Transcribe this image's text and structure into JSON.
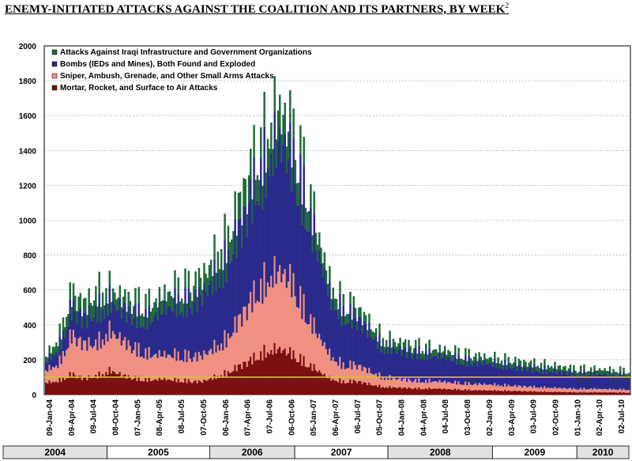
{
  "title": "ENEMY-INITIATED ATTACKS AGAINST THE COALITION AND ITS PARTNERS, BY WEEK",
  "footnote": "2",
  "chart_data": {
    "type": "bar",
    "stacked": true,
    "ylim": [
      0,
      2000
    ],
    "yticks": [
      0,
      200,
      400,
      600,
      800,
      1000,
      1200,
      1400,
      1600,
      1800,
      2000
    ],
    "grid": true,
    "legend_position": "top-left",
    "reference_line": 100,
    "date_range": [
      "09-Jan-04",
      "02-Jul-10"
    ],
    "xtick_labels": [
      "09-Jan-04",
      "09-Apr-04",
      "09-Jul-04",
      "08-Oct-04",
      "07-Jan-05",
      "08-Apr-05",
      "08-Jul-05",
      "07-Oct-05",
      "06-Jan-06",
      "07-Apr-06",
      "07-Jul-06",
      "06-Oct-06",
      "05-Jan-07",
      "06-Apr-07",
      "06-Jul-07",
      "05-Oct-07",
      "04-Jan-08",
      "04-Apr-08",
      "04-Jul-08",
      "03-Oct-08",
      "02-Jan-09",
      "03-Apr-09",
      "03-Jul-09",
      "02-Oct-09",
      "01-Jan-10",
      "02-Apr-10",
      "02-Jul-10"
    ],
    "years": [
      {
        "label": "2004",
        "shaded": true
      },
      {
        "label": "2005",
        "shaded": false
      },
      {
        "label": "2006",
        "shaded": true
      },
      {
        "label": "2007",
        "shaded": false
      },
      {
        "label": "2008",
        "shaded": true
      },
      {
        "label": "2009",
        "shaded": false
      },
      {
        "label": "2010",
        "shaded": true
      }
    ],
    "series": [
      {
        "name": "Mortar, Rocket, and Surface to Air Attacks",
        "color": "#7a1010",
        "values": [
          70,
          80,
          120,
          95,
          110,
          140,
          110,
          95,
          85,
          90,
          85,
          80,
          75,
          100,
          125,
          170,
          210,
          250,
          265,
          240,
          190,
          140,
          90,
          75,
          80,
          60,
          45,
          42,
          38,
          35,
          35,
          32,
          30,
          26,
          25,
          24,
          22,
          20,
          18,
          16,
          15,
          14,
          14,
          13,
          13,
          12
        ]
      },
      {
        "name": "Sniper, Ambush, Grenade, and Other Small Arms Attacks",
        "color": "#f09080",
        "values": [
          70,
          100,
          230,
          200,
          190,
          230,
          200,
          170,
          150,
          140,
          145,
          145,
          150,
          170,
          200,
          280,
          360,
          410,
          450,
          420,
          300,
          210,
          130,
          95,
          95,
          75,
          55,
          52,
          48,
          45,
          43,
          40,
          38,
          36,
          34,
          32,
          30,
          28,
          26,
          24,
          22,
          20,
          20,
          19,
          18,
          18
        ]
      },
      {
        "name": "Bombs (IEDs and Mines), Both Found and Exploded",
        "color": "#2a2a8c",
        "values": [
          50,
          90,
          160,
          150,
          190,
          170,
          180,
          200,
          210,
          260,
          300,
          320,
          350,
          400,
          450,
          530,
          620,
          670,
          760,
          720,
          640,
          480,
          330,
          300,
          280,
          230,
          180,
          170,
          165,
          160,
          150,
          145,
          140,
          130,
          125,
          120,
          115,
          110,
          105,
          100,
          95,
          90,
          90,
          88,
          85,
          85
        ]
      },
      {
        "name": "Attacks Against Iraqi Infrastructure and Government Organizations",
        "color": "#1e6b3a",
        "values": [
          30,
          60,
          90,
          80,
          110,
          70,
          70,
          80,
          80,
          80,
          90,
          90,
          100,
          120,
          130,
          150,
          160,
          170,
          180,
          160,
          140,
          100,
          70,
          60,
          55,
          45,
          45,
          42,
          40,
          39,
          37,
          36,
          35,
          34,
          33,
          32,
          31,
          30,
          29,
          28,
          27,
          26,
          25,
          25,
          25,
          24
        ]
      }
    ]
  }
}
